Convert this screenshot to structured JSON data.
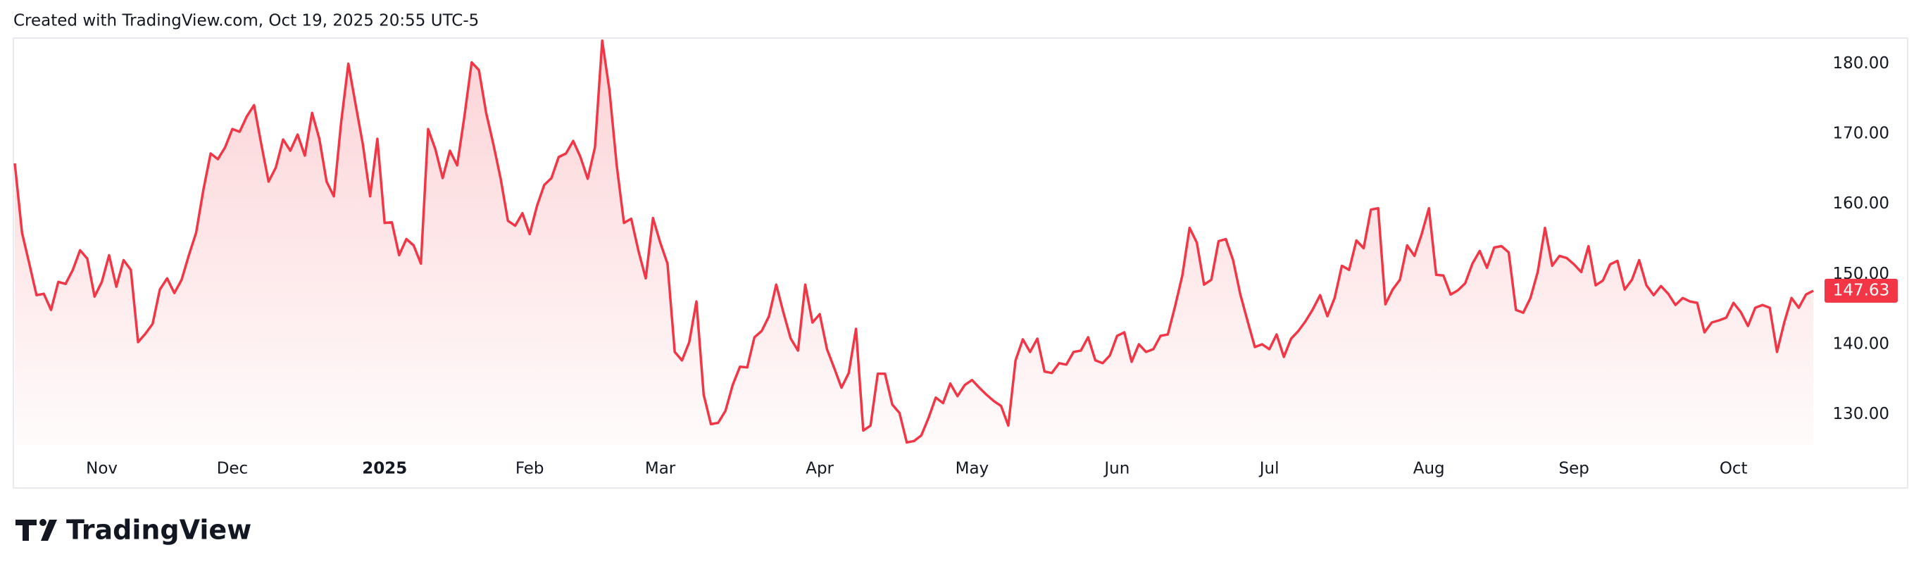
{
  "header": "Created with TradingView.com, Oct 19, 2025 20:55 UTC-5",
  "brand": "TradingView",
  "chart_data": {
    "type": "area",
    "series": [
      {
        "color": "#f23645",
        "values": [
          165.8,
          155.9,
          151.5,
          147.0,
          147.2,
          144.9,
          148.9,
          148.6,
          150.6,
          153.4,
          152.2,
          146.8,
          148.9,
          152.7,
          148.2,
          152.0,
          150.6,
          140.3,
          141.5,
          142.9,
          147.8,
          149.4,
          147.3,
          149.2,
          152.7,
          155.9,
          162.0,
          167.2,
          166.4,
          168.1,
          170.7,
          170.3,
          172.5,
          174.1,
          168.5,
          163.2,
          165.2,
          169.2,
          167.6,
          169.9,
          166.9,
          173.0,
          169.3,
          163.2,
          161.1,
          171.6,
          180.0,
          174.2,
          168.5,
          161.1,
          169.3,
          157.3,
          157.4,
          152.7,
          155.0,
          154.1,
          151.5,
          170.7,
          167.8,
          163.7,
          167.6,
          165.5,
          172.5,
          180.2,
          179.1,
          173.0,
          168.5,
          163.6,
          157.6,
          156.9,
          158.7,
          155.7,
          159.7,
          162.7,
          163.7,
          166.7,
          167.2,
          169.0,
          166.7,
          163.6,
          168.1,
          183.3,
          176.2,
          165.5,
          157.3,
          157.9,
          153.3,
          149.4,
          158.0,
          154.5,
          151.5,
          138.9,
          137.7,
          140.3,
          146.1,
          132.8,
          128.6,
          128.8,
          130.5,
          134.2,
          136.8,
          136.7,
          141.0,
          141.9,
          144.0,
          148.5,
          144.5,
          140.8,
          139.1,
          148.5,
          143.1,
          144.3,
          139.3,
          136.6,
          133.8,
          135.9,
          142.2,
          127.7,
          128.4,
          135.8,
          135.8,
          131.4,
          130.2,
          126.0,
          126.2,
          127.0,
          129.5,
          132.4,
          131.6,
          134.4,
          132.6,
          134.2,
          134.9,
          133.8,
          132.8,
          131.9,
          131.2,
          128.4,
          137.7,
          140.7,
          138.9,
          140.8,
          136.1,
          135.9,
          137.3,
          137.1,
          138.9,
          139.1,
          141.0,
          137.7,
          137.3,
          138.4,
          141.2,
          141.7,
          137.5,
          140.0,
          138.9,
          139.3,
          141.2,
          141.4,
          145.4,
          149.8,
          156.6,
          154.5,
          148.5,
          149.2,
          154.7,
          155.0,
          152.0,
          147.1,
          143.3,
          139.6,
          140.0,
          139.3,
          141.4,
          138.2,
          140.8,
          141.9,
          143.3,
          145.0,
          147.0,
          144.0,
          146.6,
          151.2,
          150.6,
          154.8,
          153.7,
          159.2,
          159.4,
          145.7,
          147.8,
          149.2,
          154.1,
          152.6,
          155.7,
          159.4,
          149.9,
          149.8,
          147.1,
          147.7,
          148.7,
          151.5,
          153.3,
          150.9,
          153.8,
          154.0,
          153.1,
          144.9,
          144.5,
          146.6,
          150.3,
          156.6,
          151.2,
          152.6,
          152.3,
          151.4,
          150.3,
          154.0,
          148.4,
          149.1,
          151.4,
          151.9,
          147.8,
          149.2,
          152.0,
          148.4,
          147.0,
          148.3,
          147.2,
          145.6,
          146.6,
          146.1,
          145.9,
          141.7,
          143.1,
          143.4,
          143.8,
          145.9,
          144.6,
          142.6,
          145.2,
          145.6,
          145.2,
          138.9,
          143.1,
          146.6,
          145.2,
          147.1,
          147.63
        ]
      }
    ],
    "xlim": [
      0,
      248
    ],
    "xticks": [
      {
        "value": 12,
        "label": "Nov"
      },
      {
        "value": 30,
        "label": "Dec"
      },
      {
        "value": 51,
        "label": "2025"
      },
      {
        "value": 71,
        "label": "Feb"
      },
      {
        "value": 89,
        "label": "Mar"
      },
      {
        "value": 111,
        "label": "Apr"
      },
      {
        "value": 132,
        "label": "May"
      },
      {
        "value": 152,
        "label": "Jun"
      },
      {
        "value": 173,
        "label": "Jul"
      },
      {
        "value": 195,
        "label": "Aug"
      },
      {
        "value": 215,
        "label": "Sep"
      },
      {
        "value": 237,
        "label": "Oct"
      }
    ],
    "ylim": [
      125.63,
      183.67
    ],
    "yticks": [
      {
        "value": 130,
        "label": "130.00"
      },
      {
        "value": 140,
        "label": "140.00"
      },
      {
        "value": 150,
        "label": "150.00"
      },
      {
        "value": 160,
        "label": "160.00"
      },
      {
        "value": 170,
        "label": "170.00"
      },
      {
        "value": 180,
        "label": "180.00"
      }
    ],
    "grid": false
  }
}
